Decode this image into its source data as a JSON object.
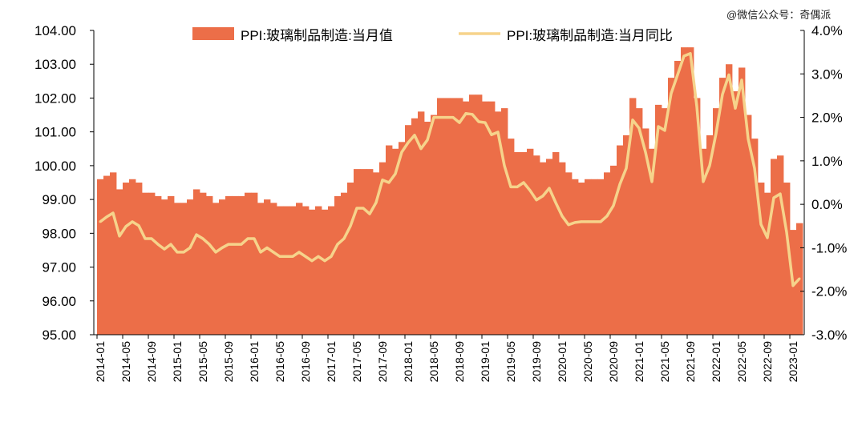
{
  "watermark": "@微信公众号：奇偶派",
  "chart_data": {
    "type": "bar+line",
    "title": "",
    "legend_position": "top",
    "colors": {
      "bar": "#EC6E48",
      "line": "#F6D38B"
    },
    "x": [
      "2014-01",
      "2014-02",
      "2014-03",
      "2014-04",
      "2014-05",
      "2014-06",
      "2014-07",
      "2014-08",
      "2014-09",
      "2014-10",
      "2014-11",
      "2014-12",
      "2015-01",
      "2015-02",
      "2015-03",
      "2015-04",
      "2015-05",
      "2015-06",
      "2015-07",
      "2015-08",
      "2015-09",
      "2015-10",
      "2015-11",
      "2015-12",
      "2016-01",
      "2016-02",
      "2016-03",
      "2016-04",
      "2016-05",
      "2016-06",
      "2016-07",
      "2016-08",
      "2016-09",
      "2016-10",
      "2016-11",
      "2016-12",
      "2017-01",
      "2017-02",
      "2017-03",
      "2017-04",
      "2017-05",
      "2017-06",
      "2017-07",
      "2017-08",
      "2017-09",
      "2017-10",
      "2017-11",
      "2017-12",
      "2018-01",
      "2018-02",
      "2018-03",
      "2018-04",
      "2018-05",
      "2018-06",
      "2018-07",
      "2018-08",
      "2018-09",
      "2018-10",
      "2018-11",
      "2018-12",
      "2019-01",
      "2019-02",
      "2019-03",
      "2019-04",
      "2019-05",
      "2019-06",
      "2019-07",
      "2019-08",
      "2019-09",
      "2019-10",
      "2019-11",
      "2019-12",
      "2020-01",
      "2020-02",
      "2020-03",
      "2020-04",
      "2020-05",
      "2020-06",
      "2020-07",
      "2020-08",
      "2020-09",
      "2020-10",
      "2020-11",
      "2020-12",
      "2021-01",
      "2021-02",
      "2021-03",
      "2021-04",
      "2021-05",
      "2021-06",
      "2021-07",
      "2021-08",
      "2021-09",
      "2021-10",
      "2021-11",
      "2021-12",
      "2022-01",
      "2022-02",
      "2022-03",
      "2022-04",
      "2022-05",
      "2022-06",
      "2022-07",
      "2022-08",
      "2022-09",
      "2022-10",
      "2022-11",
      "2022-12",
      "2023-01",
      "2023-02"
    ],
    "x_tick_labels": [
      "2014-01",
      "2014-05",
      "2014-09",
      "2015-01",
      "2015-05",
      "2015-09",
      "2016-01",
      "2016-05",
      "2016-09",
      "2017-01",
      "2017-05",
      "2017-09",
      "2018-01",
      "2018-05",
      "2018-09",
      "2019-01",
      "2019-05",
      "2019-09",
      "2020-01",
      "2020-05",
      "2020-09",
      "2021-01",
      "2021-05",
      "2021-09",
      "2022-01",
      "2022-05",
      "2022-09",
      "2023-01"
    ],
    "y_left": {
      "range": [
        95,
        104
      ],
      "ticks": [
        "95.00",
        "96.00",
        "97.00",
        "98.00",
        "99.00",
        "100.00",
        "101.00",
        "102.00",
        "103.00",
        "104.00"
      ]
    },
    "y_right": {
      "range": [
        -3,
        4
      ],
      "ticks": [
        "-3.0%",
        "-2.0%",
        "-1.0%",
        "0.0%",
        "1.0%",
        "2.0%",
        "3.0%",
        "4.0%"
      ]
    },
    "series": [
      {
        "name": "PPI:玻璃制品制造:当月值",
        "type": "bar",
        "axis": "left",
        "values": [
          99.6,
          99.7,
          99.8,
          99.3,
          99.5,
          99.6,
          99.5,
          99.2,
          99.2,
          99.1,
          99.0,
          99.1,
          98.9,
          98.9,
          99.0,
          99.3,
          99.2,
          99.1,
          98.9,
          99.0,
          99.1,
          99.1,
          99.1,
          99.2,
          99.2,
          98.9,
          99.0,
          98.9,
          98.8,
          98.8,
          98.8,
          98.9,
          98.8,
          98.7,
          98.8,
          98.7,
          98.8,
          99.1,
          99.2,
          99.5,
          99.9,
          99.9,
          99.9,
          99.8,
          100.1,
          100.6,
          100.5,
          100.7,
          101.2,
          101.4,
          101.6,
          101.3,
          101.5,
          102.0,
          102.0,
          102.0,
          102.0,
          101.9,
          102.1,
          102.1,
          101.9,
          101.9,
          101.6,
          101.7,
          100.8,
          100.4,
          100.4,
          100.5,
          100.3,
          100.1,
          100.2,
          100.4,
          100.1,
          99.8,
          99.6,
          99.5,
          99.6,
          99.6,
          99.6,
          99.8,
          100.0,
          100.6,
          100.9,
          102.0,
          101.7,
          101.1,
          100.5,
          101.8,
          101.7,
          102.6,
          103.1,
          103.5,
          103.5,
          102.0,
          100.5,
          100.9,
          101.7,
          102.6,
          103.0,
          102.2,
          102.9,
          101.5,
          100.8,
          99.5,
          99.2,
          100.2,
          100.3,
          99.5,
          98.1,
          98.3
        ]
      },
      {
        "name": "PPI:玻璃制品制造:当月同比",
        "type": "line",
        "axis": "right",
        "unit": "%",
        "values": [
          -0.4,
          -0.29,
          -0.2,
          -0.73,
          -0.51,
          -0.4,
          -0.49,
          -0.79,
          -0.79,
          -0.92,
          -1.03,
          -0.92,
          -1.1,
          -1.1,
          -1.0,
          -0.7,
          -0.79,
          -0.92,
          -1.1,
          -1.0,
          -0.92,
          -0.92,
          -0.92,
          -0.79,
          -0.79,
          -1.1,
          -1.0,
          -1.1,
          -1.2,
          -1.2,
          -1.2,
          -1.1,
          -1.2,
          -1.3,
          -1.2,
          -1.3,
          -1.2,
          -0.92,
          -0.79,
          -0.5,
          -0.09,
          -0.09,
          -0.22,
          0.04,
          0.56,
          0.5,
          0.7,
          1.2,
          1.42,
          1.59,
          1.28,
          1.48,
          2.0,
          2.0,
          2.0,
          2.0,
          1.88,
          2.09,
          2.07,
          1.9,
          1.88,
          1.6,
          1.66,
          0.89,
          0.4,
          0.4,
          0.5,
          0.32,
          0.1,
          0.19,
          0.37,
          0.04,
          -0.27,
          -0.47,
          -0.42,
          -0.4,
          -0.4,
          -0.4,
          -0.4,
          -0.27,
          -0.03,
          0.46,
          0.83,
          1.94,
          1.75,
          1.2,
          0.52,
          1.79,
          1.7,
          2.55,
          2.98,
          3.41,
          3.47,
          2.25,
          0.52,
          0.89,
          1.63,
          2.53,
          2.98,
          2.21,
          2.86,
          1.51,
          0.83,
          -0.46,
          -0.77,
          0.15,
          0.24,
          -0.64,
          -1.87,
          -1.71
        ]
      }
    ]
  }
}
